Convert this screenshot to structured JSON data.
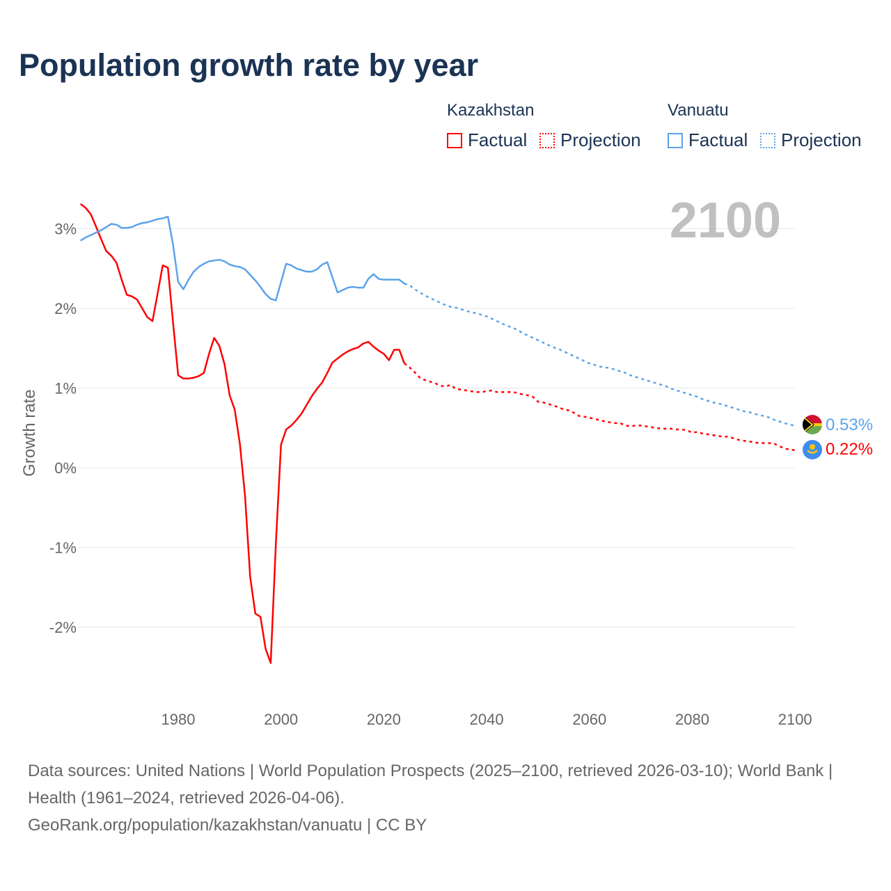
{
  "chart_data": {
    "type": "line",
    "title": "Population growth rate by year",
    "ylabel": "Growth rate",
    "xlabel": "",
    "xlim": [
      1961,
      2100
    ],
    "ylim": [
      -2.9,
      3.4
    ],
    "x_ticks": [
      {
        "value": 1980,
        "label": "1980"
      },
      {
        "value": 2000,
        "label": "2000"
      },
      {
        "value": 2020,
        "label": "2020"
      },
      {
        "value": 2040,
        "label": "2040"
      },
      {
        "value": 2060,
        "label": "2060"
      },
      {
        "value": 2080,
        "label": "2080"
      },
      {
        "value": 2100,
        "label": "2100"
      }
    ],
    "y_ticks": [
      {
        "value": 3,
        "label": "3%"
      },
      {
        "value": 2,
        "label": "2%"
      },
      {
        "value": 1,
        "label": "1%"
      },
      {
        "value": 0,
        "label": "0%"
      },
      {
        "value": -1,
        "label": "-1%"
      },
      {
        "value": -2,
        "label": "-2%"
      }
    ],
    "grid": true,
    "year_label": "2100",
    "legend_placement": "top-right",
    "series": [
      {
        "name": "Kazakhstan",
        "color": "#ff0000",
        "end_label": "0.22%",
        "flag": "kazakhstan-flag",
        "factual": {
          "start": 1961,
          "values": [
            3.31,
            3.26,
            3.18,
            3.03,
            2.87,
            2.72,
            2.66,
            2.57,
            2.36,
            2.17,
            2.15,
            2.11,
            2.0,
            1.89,
            1.84,
            2.19,
            2.54,
            2.51,
            1.82,
            1.16,
            1.12,
            1.12,
            1.13,
            1.15,
            1.19,
            1.43,
            1.63,
            1.53,
            1.3,
            0.91,
            0.73,
            0.3,
            -0.35,
            -1.37,
            -1.83,
            -1.87,
            -2.27,
            -2.45,
            -0.95,
            0.29,
            0.48,
            0.53,
            0.6,
            0.68,
            0.79,
            0.9,
            0.99,
            1.07,
            1.19,
            1.32,
            1.37,
            1.42,
            1.46,
            1.49,
            1.51,
            1.56,
            1.58,
            1.52,
            1.47,
            1.43,
            1.35,
            1.48,
            1.48,
            1.31
          ]
        },
        "projection": {
          "start": 2024,
          "values": [
            1.31,
            1.26,
            1.2,
            1.13,
            1.1,
            1.08,
            1.06,
            1.03,
            1.02,
            1.04,
            0.99,
            0.98,
            0.97,
            0.96,
            0.95,
            0.95,
            0.96,
            0.97,
            0.95,
            0.95,
            0.95,
            0.95,
            0.94,
            0.92,
            0.91,
            0.89,
            0.83,
            0.82,
            0.8,
            0.78,
            0.76,
            0.73,
            0.72,
            0.69,
            0.65,
            0.64,
            0.63,
            0.61,
            0.6,
            0.58,
            0.57,
            0.56,
            0.56,
            0.53,
            0.52,
            0.53,
            0.53,
            0.52,
            0.51,
            0.5,
            0.49,
            0.49,
            0.49,
            0.48,
            0.48,
            0.47,
            0.44,
            0.45,
            0.43,
            0.42,
            0.41,
            0.4,
            0.39,
            0.39,
            0.37,
            0.35,
            0.34,
            0.33,
            0.32,
            0.31,
            0.31,
            0.31,
            0.3,
            0.27,
            0.24,
            0.23,
            0.22
          ]
        }
      },
      {
        "name": "Vanuatu",
        "color": "#5ba3ea",
        "end_label": "0.53%",
        "flag": "vanuatu-flag",
        "factual": {
          "start": 1961,
          "values": [
            2.85,
            2.89,
            2.92,
            2.95,
            2.98,
            3.02,
            3.06,
            3.05,
            3.01,
            3.01,
            3.02,
            3.05,
            3.07,
            3.08,
            3.1,
            3.12,
            3.13,
            3.15,
            2.8,
            2.33,
            2.24,
            2.36,
            2.46,
            2.52,
            2.56,
            2.59,
            2.6,
            2.61,
            2.59,
            2.55,
            2.53,
            2.52,
            2.49,
            2.42,
            2.35,
            2.27,
            2.18,
            2.12,
            2.1,
            2.33,
            2.56,
            2.54,
            2.5,
            2.48,
            2.46,
            2.46,
            2.49,
            2.55,
            2.58,
            2.39,
            2.2,
            2.23,
            2.26,
            2.27,
            2.26,
            2.26,
            2.37,
            2.43,
            2.37,
            2.36,
            2.36,
            2.36,
            2.36,
            2.31
          ]
        },
        "projection": {
          "start": 2024,
          "values": [
            2.31,
            2.29,
            2.24,
            2.2,
            2.16,
            2.13,
            2.1,
            2.07,
            2.04,
            2.02,
            2.01,
            1.99,
            1.97,
            1.95,
            1.94,
            1.92,
            1.9,
            1.87,
            1.84,
            1.81,
            1.78,
            1.76,
            1.73,
            1.69,
            1.66,
            1.63,
            1.6,
            1.57,
            1.54,
            1.51,
            1.49,
            1.46,
            1.43,
            1.4,
            1.37,
            1.34,
            1.31,
            1.29,
            1.27,
            1.26,
            1.25,
            1.23,
            1.21,
            1.19,
            1.16,
            1.14,
            1.12,
            1.1,
            1.08,
            1.06,
            1.04,
            1.02,
            0.99,
            0.97,
            0.95,
            0.93,
            0.91,
            0.89,
            0.86,
            0.84,
            0.82,
            0.81,
            0.79,
            0.77,
            0.75,
            0.73,
            0.71,
            0.7,
            0.68,
            0.66,
            0.65,
            0.63,
            0.6,
            0.58,
            0.56,
            0.54,
            0.53
          ]
        }
      }
    ]
  },
  "legend": {
    "groups": [
      {
        "name": "Kazakhstan",
        "factual": "Factual",
        "projection": "Projection"
      },
      {
        "name": "Vanuatu",
        "factual": "Factual",
        "projection": "Projection"
      }
    ]
  },
  "footer": {
    "sources": "Data sources: United Nations | World Population Prospects (2025–2100, retrieved 2026-03-10); World Bank | Health (1961–2024, retrieved 2026-04-06).",
    "credit": "GeoRank.org/population/kazakhstan/vanuatu | CC BY"
  }
}
